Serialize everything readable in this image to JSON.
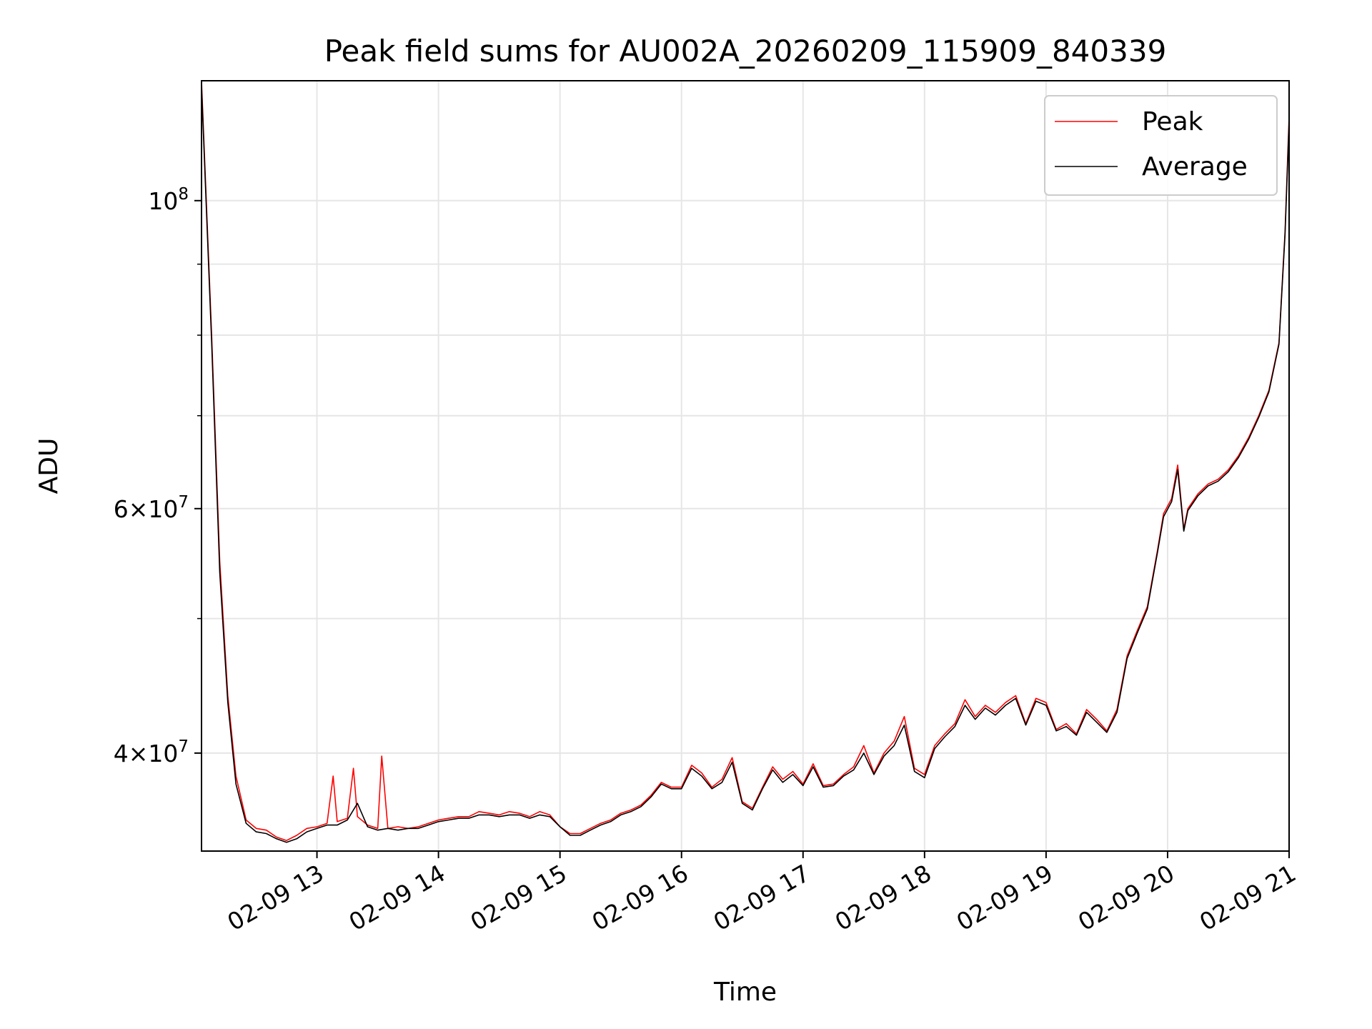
{
  "chart_data": {
    "type": "line",
    "title": "Peak field sums for AU002A_20260209_115909_840339",
    "xlabel": "Time",
    "ylabel": "ADU",
    "x_scale": "time",
    "y_scale": "log",
    "grid": true,
    "legend_position": "top-right",
    "xlim": [
      "2026-02-09 12:03",
      "2026-02-09 21:00"
    ],
    "ylim": [
      34000000,
      122000000
    ],
    "x_ticks": [
      {
        "value": "2026-02-09 13:00",
        "label": "02-09 13"
      },
      {
        "value": "2026-02-09 14:00",
        "label": "02-09 14"
      },
      {
        "value": "2026-02-09 15:00",
        "label": "02-09 15"
      },
      {
        "value": "2026-02-09 16:00",
        "label": "02-09 16"
      },
      {
        "value": "2026-02-09 17:00",
        "label": "02-09 17"
      },
      {
        "value": "2026-02-09 18:00",
        "label": "02-09 18"
      },
      {
        "value": "2026-02-09 19:00",
        "label": "02-09 19"
      },
      {
        "value": "2026-02-09 20:00",
        "label": "02-09 20"
      },
      {
        "value": "2026-02-09 21:00",
        "label": "02-09 21"
      }
    ],
    "y_major_ticks": [
      {
        "value": 40000000,
        "mant": "4",
        "exp": "7"
      },
      {
        "value": 60000000,
        "mant": "6",
        "exp": "7"
      },
      {
        "value": 100000000,
        "mant": "",
        "exp": "8"
      }
    ],
    "y_minor_grid": [
      50000000,
      70000000,
      80000000,
      90000000
    ],
    "series": [
      {
        "name": "Peak",
        "color": "#ff0000",
        "x": [
          "2026-02-09 12:03",
          "2026-02-09 12:08",
          "2026-02-09 12:12",
          "2026-02-09 12:16",
          "2026-02-09 12:20",
          "2026-02-09 12:25",
          "2026-02-09 12:30",
          "2026-02-09 12:35",
          "2026-02-09 12:40",
          "2026-02-09 12:45",
          "2026-02-09 12:50",
          "2026-02-09 12:55",
          "2026-02-09 13:00",
          "2026-02-09 13:05",
          "2026-02-09 13:08",
          "2026-02-09 13:10",
          "2026-02-09 13:15",
          "2026-02-09 13:18",
          "2026-02-09 13:20",
          "2026-02-09 13:25",
          "2026-02-09 13:30",
          "2026-02-09 13:32",
          "2026-02-09 13:35",
          "2026-02-09 13:40",
          "2026-02-09 13:45",
          "2026-02-09 13:50",
          "2026-02-09 13:55",
          "2026-02-09 14:00",
          "2026-02-09 14:05",
          "2026-02-09 14:10",
          "2026-02-09 14:15",
          "2026-02-09 14:20",
          "2026-02-09 14:25",
          "2026-02-09 14:30",
          "2026-02-09 14:35",
          "2026-02-09 14:40",
          "2026-02-09 14:45",
          "2026-02-09 14:50",
          "2026-02-09 14:55",
          "2026-02-09 15:00",
          "2026-02-09 15:05",
          "2026-02-09 15:10",
          "2026-02-09 15:15",
          "2026-02-09 15:20",
          "2026-02-09 15:25",
          "2026-02-09 15:30",
          "2026-02-09 15:35",
          "2026-02-09 15:40",
          "2026-02-09 15:45",
          "2026-02-09 15:50",
          "2026-02-09 15:55",
          "2026-02-09 16:00",
          "2026-02-09 16:05",
          "2026-02-09 16:10",
          "2026-02-09 16:15",
          "2026-02-09 16:20",
          "2026-02-09 16:25",
          "2026-02-09 16:30",
          "2026-02-09 16:35",
          "2026-02-09 16:40",
          "2026-02-09 16:45",
          "2026-02-09 16:50",
          "2026-02-09 16:55",
          "2026-02-09 17:00",
          "2026-02-09 17:05",
          "2026-02-09 17:10",
          "2026-02-09 17:15",
          "2026-02-09 17:20",
          "2026-02-09 17:25",
          "2026-02-09 17:30",
          "2026-02-09 17:35",
          "2026-02-09 17:40",
          "2026-02-09 17:45",
          "2026-02-09 17:50",
          "2026-02-09 17:55",
          "2026-02-09 18:00",
          "2026-02-09 18:05",
          "2026-02-09 18:10",
          "2026-02-09 18:15",
          "2026-02-09 18:20",
          "2026-02-09 18:25",
          "2026-02-09 18:30",
          "2026-02-09 18:35",
          "2026-02-09 18:40",
          "2026-02-09 18:45",
          "2026-02-09 18:50",
          "2026-02-09 18:55",
          "2026-02-09 19:00",
          "2026-02-09 19:05",
          "2026-02-09 19:10",
          "2026-02-09 19:15",
          "2026-02-09 19:20",
          "2026-02-09 19:25",
          "2026-02-09 19:30",
          "2026-02-09 19:35",
          "2026-02-09 19:40",
          "2026-02-09 19:45",
          "2026-02-09 19:50",
          "2026-02-09 19:55",
          "2026-02-09 19:58",
          "2026-02-09 20:02",
          "2026-02-09 20:05",
          "2026-02-09 20:08",
          "2026-02-09 20:10",
          "2026-02-09 20:15",
          "2026-02-09 20:20",
          "2026-02-09 20:25",
          "2026-02-09 20:30",
          "2026-02-09 20:35",
          "2026-02-09 20:40",
          "2026-02-09 20:45",
          "2026-02-09 20:50",
          "2026-02-09 20:55",
          "2026-02-09 20:58",
          "2026-02-09 21:00"
        ],
        "y": [
          122000000,
          80000000,
          55000000,
          44000000,
          38500000,
          35800000,
          35300000,
          35200000,
          34800000,
          34600000,
          34900000,
          35300000,
          35400000,
          35600000,
          38500000,
          35700000,
          35900000,
          39000000,
          36000000,
          35500000,
          35300000,
          39800000,
          35300000,
          35400000,
          35300000,
          35400000,
          35600000,
          35800000,
          35900000,
          36000000,
          36000000,
          36300000,
          36200000,
          36100000,
          36300000,
          36200000,
          36000000,
          36300000,
          36100000,
          35400000,
          35000000,
          35000000,
          35300000,
          35600000,
          35800000,
          36200000,
          36400000,
          36700000,
          37300000,
          38100000,
          37800000,
          37800000,
          39200000,
          38700000,
          37800000,
          38300000,
          39700000,
          36900000,
          36500000,
          37800000,
          39100000,
          38300000,
          38800000,
          38000000,
          39300000,
          37900000,
          38000000,
          38600000,
          39100000,
          40500000,
          38700000,
          40000000,
          40800000,
          42500000,
          39000000,
          38600000,
          40500000,
          41300000,
          42000000,
          43700000,
          42500000,
          43300000,
          42800000,
          43500000,
          44000000,
          42000000,
          43800000,
          43500000,
          41600000,
          42000000,
          41300000,
          43000000,
          42300000,
          41500000,
          43000000,
          47000000,
          49000000,
          51000000,
          56000000,
          59500000,
          61000000,
          64500000,
          58000000,
          60000000,
          61500000,
          62500000,
          63000000,
          64000000,
          65500000,
          67500000,
          70000000,
          73000000,
          79000000,
          95000000,
          115000000
        ]
      },
      {
        "name": "Average",
        "color": "#000000",
        "x": [
          "2026-02-09 12:03",
          "2026-02-09 12:08",
          "2026-02-09 12:12",
          "2026-02-09 12:16",
          "2026-02-09 12:20",
          "2026-02-09 12:25",
          "2026-02-09 12:30",
          "2026-02-09 12:35",
          "2026-02-09 12:40",
          "2026-02-09 12:45",
          "2026-02-09 12:50",
          "2026-02-09 12:55",
          "2026-02-09 13:00",
          "2026-02-09 13:05",
          "2026-02-09 13:10",
          "2026-02-09 13:15",
          "2026-02-09 13:20",
          "2026-02-09 13:25",
          "2026-02-09 13:30",
          "2026-02-09 13:35",
          "2026-02-09 13:40",
          "2026-02-09 13:45",
          "2026-02-09 13:50",
          "2026-02-09 13:55",
          "2026-02-09 14:00",
          "2026-02-09 14:05",
          "2026-02-09 14:10",
          "2026-02-09 14:15",
          "2026-02-09 14:20",
          "2026-02-09 14:25",
          "2026-02-09 14:30",
          "2026-02-09 14:35",
          "2026-02-09 14:40",
          "2026-02-09 14:45",
          "2026-02-09 14:50",
          "2026-02-09 14:55",
          "2026-02-09 15:00",
          "2026-02-09 15:05",
          "2026-02-09 15:10",
          "2026-02-09 15:15",
          "2026-02-09 15:20",
          "2026-02-09 15:25",
          "2026-02-09 15:30",
          "2026-02-09 15:35",
          "2026-02-09 15:40",
          "2026-02-09 15:45",
          "2026-02-09 15:50",
          "2026-02-09 15:55",
          "2026-02-09 16:00",
          "2026-02-09 16:05",
          "2026-02-09 16:10",
          "2026-02-09 16:15",
          "2026-02-09 16:20",
          "2026-02-09 16:25",
          "2026-02-09 16:30",
          "2026-02-09 16:35",
          "2026-02-09 16:40",
          "2026-02-09 16:45",
          "2026-02-09 16:50",
          "2026-02-09 16:55",
          "2026-02-09 17:00",
          "2026-02-09 17:05",
          "2026-02-09 17:10",
          "2026-02-09 17:15",
          "2026-02-09 17:20",
          "2026-02-09 17:25",
          "2026-02-09 17:30",
          "2026-02-09 17:35",
          "2026-02-09 17:40",
          "2026-02-09 17:45",
          "2026-02-09 17:50",
          "2026-02-09 17:55",
          "2026-02-09 18:00",
          "2026-02-09 18:05",
          "2026-02-09 18:10",
          "2026-02-09 18:15",
          "2026-02-09 18:20",
          "2026-02-09 18:25",
          "2026-02-09 18:30",
          "2026-02-09 18:35",
          "2026-02-09 18:40",
          "2026-02-09 18:45",
          "2026-02-09 18:50",
          "2026-02-09 18:55",
          "2026-02-09 19:00",
          "2026-02-09 19:05",
          "2026-02-09 19:10",
          "2026-02-09 19:15",
          "2026-02-09 19:20",
          "2026-02-09 19:25",
          "2026-02-09 19:30",
          "2026-02-09 19:35",
          "2026-02-09 19:40",
          "2026-02-09 19:45",
          "2026-02-09 19:50",
          "2026-02-09 19:55",
          "2026-02-09 19:58",
          "2026-02-09 20:02",
          "2026-02-09 20:05",
          "2026-02-09 20:08",
          "2026-02-09 20:10",
          "2026-02-09 20:15",
          "2026-02-09 20:20",
          "2026-02-09 20:25",
          "2026-02-09 20:30",
          "2026-02-09 20:35",
          "2026-02-09 20:40",
          "2026-02-09 20:45",
          "2026-02-09 20:50",
          "2026-02-09 20:55",
          "2026-02-09 20:58",
          "2026-02-09 21:00"
        ],
        "y": [
          121000000,
          79000000,
          54000000,
          43500000,
          38000000,
          35600000,
          35100000,
          35000000,
          34700000,
          34500000,
          34700000,
          35100000,
          35300000,
          35500000,
          35500000,
          35800000,
          36800000,
          35400000,
          35200000,
          35300000,
          35200000,
          35300000,
          35300000,
          35500000,
          35700000,
          35800000,
          35900000,
          35900000,
          36100000,
          36100000,
          36000000,
          36100000,
          36100000,
          35900000,
          36100000,
          36000000,
          35400000,
          34900000,
          34900000,
          35200000,
          35500000,
          35700000,
          36100000,
          36300000,
          36600000,
          37200000,
          38000000,
          37700000,
          37700000,
          39000000,
          38500000,
          37700000,
          38100000,
          39400000,
          36800000,
          36400000,
          37700000,
          38900000,
          38100000,
          38600000,
          37900000,
          39100000,
          37800000,
          37900000,
          38500000,
          38900000,
          40000000,
          38600000,
          39800000,
          40500000,
          41900000,
          38800000,
          38400000,
          40300000,
          41100000,
          41800000,
          43300000,
          42300000,
          43100000,
          42600000,
          43300000,
          43800000,
          41900000,
          43600000,
          43300000,
          41500000,
          41800000,
          41200000,
          42800000,
          42100000,
          41400000,
          42800000,
          46800000,
          48800000,
          50800000,
          55800000,
          59200000,
          60700000,
          64000000,
          57800000,
          59800000,
          61300000,
          62300000,
          62800000,
          63800000,
          65300000,
          67300000,
          69800000,
          72800000,
          78800000,
          94500000,
          114000000
        ]
      }
    ]
  }
}
